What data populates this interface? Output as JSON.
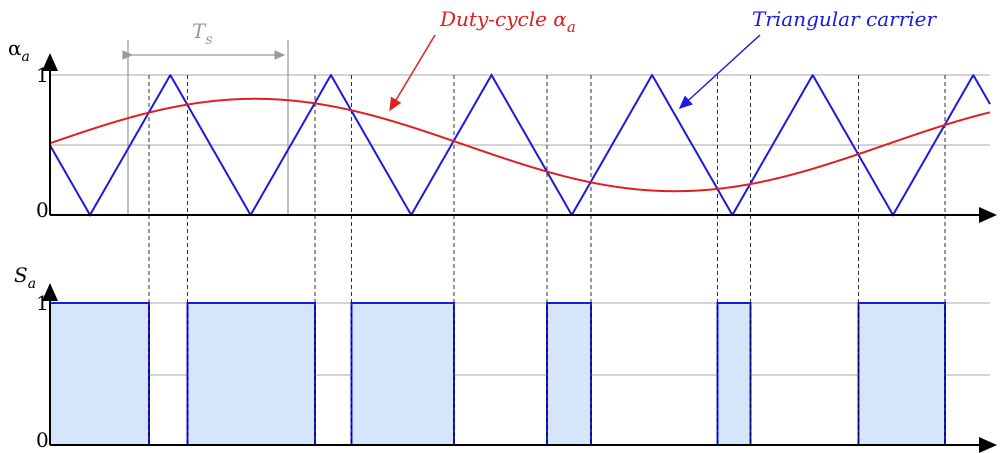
{
  "top_axis": {
    "label": "α",
    "label_sub": "a",
    "tick_high": "1",
    "tick_low": "0"
  },
  "bottom_axis": {
    "label": "S",
    "label_sub": "a",
    "tick_high": "1",
    "tick_low": "0"
  },
  "period_label": {
    "text": "T",
    "sub": "s"
  },
  "annotations": [
    {
      "text": "Duty-cycle α",
      "sub": "a"
    },
    {
      "text": "Triangular carrier"
    }
  ]
}
